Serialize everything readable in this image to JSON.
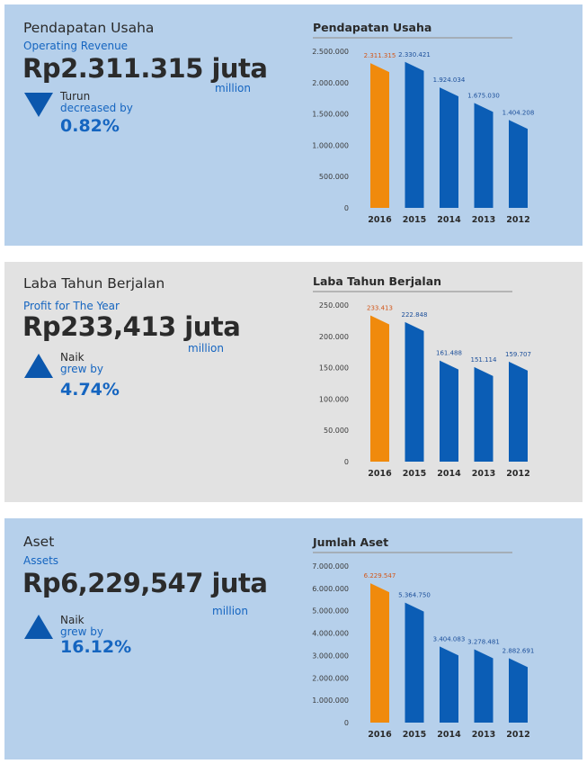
{
  "colors": {
    "highlight": "#f08a0c",
    "bar": "#0b5db5",
    "accent": "#1565c0",
    "arrow": "#0b57ad"
  },
  "panels": [
    {
      "title": "Pendapatan Usaha",
      "subtitle": "Operating Revenue",
      "amount": "Rp2.311.315 juta",
      "unit": "million",
      "direction_icon": "arrow-down-icon",
      "direction_id": "Turun",
      "direction_en": "decreased by",
      "percent": "0.82%"
    },
    {
      "title": "Laba Tahun Berjalan",
      "subtitle": "Profit for The Year",
      "amount": "Rp233,413 juta",
      "unit": "million",
      "direction_icon": "arrow-up-icon",
      "direction_id": "Naik",
      "direction_en": "grew by",
      "percent": "4.74%"
    },
    {
      "title": "Aset",
      "subtitle": "Assets",
      "amount": "Rp6,229,547 juta",
      "unit": "million",
      "direction_icon": "arrow-up-icon",
      "direction_id": "Naik",
      "direction_en": "grew by",
      "percent": "16.12%"
    }
  ],
  "chart_data": [
    {
      "type": "bar",
      "title": "Pendapatan Usaha",
      "categories": [
        "2016",
        "2015",
        "2014",
        "2013",
        "2012"
      ],
      "values": [
        2311315,
        2330421,
        1924034,
        1675030,
        1404208
      ],
      "value_labels": [
        "2.311.315",
        "2.330.421",
        "1.924.034",
        "1.675.030",
        "1.404.208"
      ],
      "yticks": [
        0,
        500000,
        1000000,
        1500000,
        2000000,
        2500000
      ],
      "ytick_labels": [
        "0",
        "500.000",
        "1.000.000",
        "1.500.000",
        "2.000.000",
        "2.500.000"
      ],
      "ylim": [
        0,
        2500000
      ],
      "highlight_index": 0
    },
    {
      "type": "bar",
      "title": "Laba Tahun Berjalan",
      "categories": [
        "2016",
        "2015",
        "2014",
        "2013",
        "2012"
      ],
      "values": [
        233413,
        222848,
        161488,
        151114,
        159707
      ],
      "value_labels": [
        "233.413",
        "222.848",
        "161.488",
        "151.114",
        "159.707"
      ],
      "yticks": [
        0,
        50000,
        100000,
        150000,
        200000,
        250000
      ],
      "ytick_labels": [
        "0",
        "50.000",
        "100.000",
        "150.000",
        "200.000",
        "250.000"
      ],
      "ylim": [
        0,
        250000
      ],
      "highlight_index": 0
    },
    {
      "type": "bar",
      "title": "Jumlah Aset",
      "categories": [
        "2016",
        "2015",
        "2014",
        "2013",
        "2012"
      ],
      "values": [
        6229547,
        5364750,
        3404083,
        3278481,
        2882691
      ],
      "value_labels": [
        "6.229.547",
        "5.364.750",
        "3.404.083",
        "3.278.481",
        "2.882.691"
      ],
      "yticks": [
        0,
        1000000,
        2000000,
        3000000,
        4000000,
        5000000,
        6000000,
        7000000
      ],
      "ytick_labels": [
        "0",
        "1.000.000",
        "2.000.000",
        "3.000.000",
        "4.000.000",
        "5.000.000",
        "6.000.000",
        "7.000.000"
      ],
      "ylim": [
        0,
        7000000
      ],
      "highlight_index": 0
    }
  ]
}
